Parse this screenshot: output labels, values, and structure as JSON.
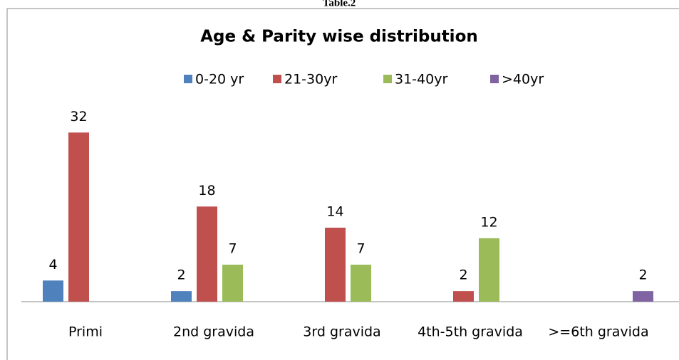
{
  "chart_data": {
    "type": "bar",
    "caption": "Table.2",
    "title": "Age & Parity wise distribution",
    "categories": [
      "Primi",
      "2nd gravida",
      "3rd gravida",
      "4th-5th gravida",
      ">=6th gravida"
    ],
    "series": [
      {
        "name": "0-20 yr",
        "color": "#4f81bd",
        "values": [
          4,
          2,
          null,
          null,
          null
        ]
      },
      {
        "name": "21-30yr",
        "color": "#c0504d",
        "values": [
          32,
          18,
          14,
          2,
          null
        ]
      },
      {
        "name": "31-40yr",
        "color": "#9bbb59",
        "values": [
          null,
          7,
          7,
          12,
          null
        ]
      },
      {
        "name": ">40yr",
        "color": "#8064a2",
        "values": [
          null,
          null,
          null,
          null,
          2
        ]
      }
    ],
    "ylim": [
      0,
      35
    ],
    "legend": "top"
  }
}
